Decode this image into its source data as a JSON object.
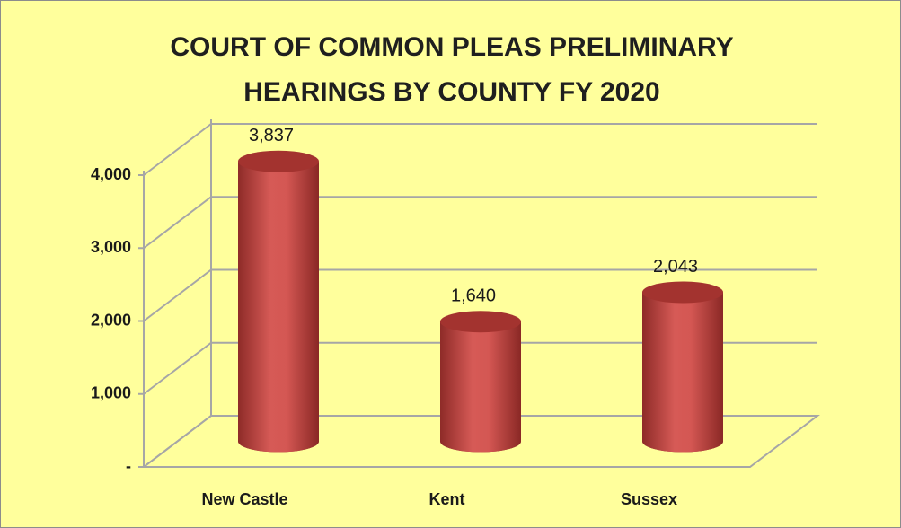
{
  "chart_data": {
    "type": "bar3d",
    "title": "COURT OF COMMON PLEAS PRELIMINARY HEARINGS BY COUNTY FY 2020",
    "categories": [
      "New Castle",
      "Kent",
      "Sussex"
    ],
    "values": [
      3837,
      1640,
      2043
    ],
    "value_labels": [
      "3,837",
      "1,640",
      "2,043"
    ],
    "color": "#c0504d",
    "ylim": [
      0,
      4000
    ],
    "yticks": [
      {
        "value": 0,
        "label": "-"
      },
      {
        "value": 1000,
        "label": "1,000"
      },
      {
        "value": 2000,
        "label": "2,000"
      },
      {
        "value": 3000,
        "label": "3,000"
      },
      {
        "value": 4000,
        "label": "4,000"
      }
    ],
    "grid": true
  }
}
